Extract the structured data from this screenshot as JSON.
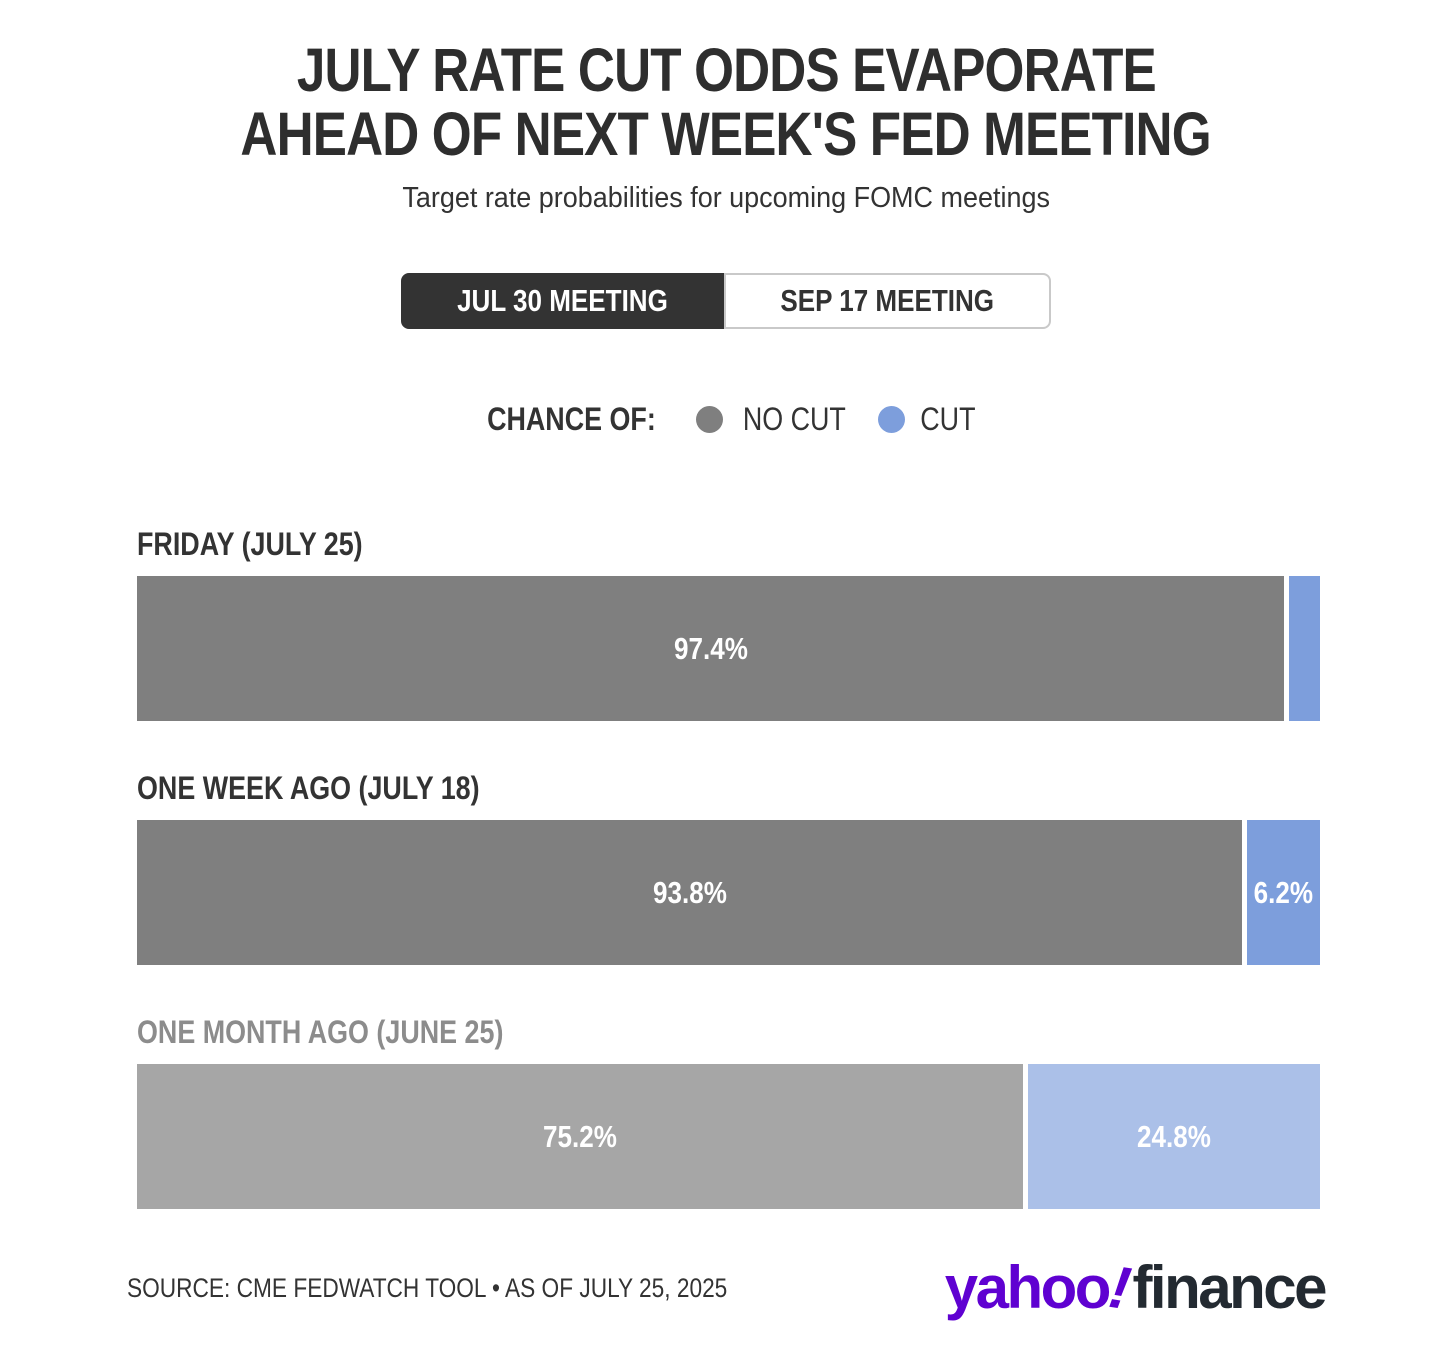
{
  "header": {
    "title_lines": [
      "JULY RATE CUT ODDS EVAPORATE",
      "AHEAD OF NEXT WEEK'S FED MEETING"
    ],
    "subtitle": "Target rate probabilities for upcoming FOMC meetings"
  },
  "tabs": [
    {
      "label": "JUL 30 MEETING",
      "active": true
    },
    {
      "label": "SEP 17 MEETING",
      "active": false
    }
  ],
  "legend": {
    "title": "CHANCE OF:",
    "items": [
      {
        "label": "NO CUT",
        "color": "#7f7f7f"
      },
      {
        "label": "CUT",
        "color": "#7d9edc"
      }
    ]
  },
  "chart_data": {
    "type": "bar",
    "orientation": "horizontal",
    "stacked": true,
    "unit": "percent",
    "series_names": [
      "NO CUT",
      "CUT"
    ],
    "xlim": [
      0,
      100
    ],
    "rows": [
      {
        "label": "FRIDAY (JULY 25)",
        "no_cut": 97.4,
        "cut": 2.6,
        "no_cut_label": "97.4%",
        "cut_label": "",
        "muted": false
      },
      {
        "label": "ONE WEEK AGO (JULY 18)",
        "no_cut": 93.8,
        "cut": 6.2,
        "no_cut_label": "93.8%",
        "cut_label": "6.2%",
        "muted": false
      },
      {
        "label": "ONE MONTH AGO (JUNE 25)",
        "no_cut": 75.2,
        "cut": 24.8,
        "no_cut_label": "75.2%",
        "cut_label": "24.8%",
        "muted": true
      }
    ],
    "colors": {
      "no_cut": "#7f7f7f",
      "cut": "#7d9edc",
      "no_cut_muted": "#a6a6a6",
      "cut_muted": "#abc0e8",
      "row_label": "#333333",
      "row_label_muted": "#8c8c8c",
      "bar_value_text": "#ffffff"
    }
  },
  "footer": {
    "source": "SOURCE: CME FEDWATCH TOOL • AS OF JULY 25, 2025",
    "logo": {
      "yahoo": "yahoo",
      "bang": "!",
      "finance": "finance",
      "yahoo_color": "#5f01d1",
      "finance_color": "#232a31"
    }
  },
  "colors": {
    "background": "#ffffff",
    "title": "#2e2e2e",
    "tab_active_bg": "#333333",
    "tab_active_text": "#ffffff",
    "tab_inactive_border": "#c9c9c9"
  }
}
